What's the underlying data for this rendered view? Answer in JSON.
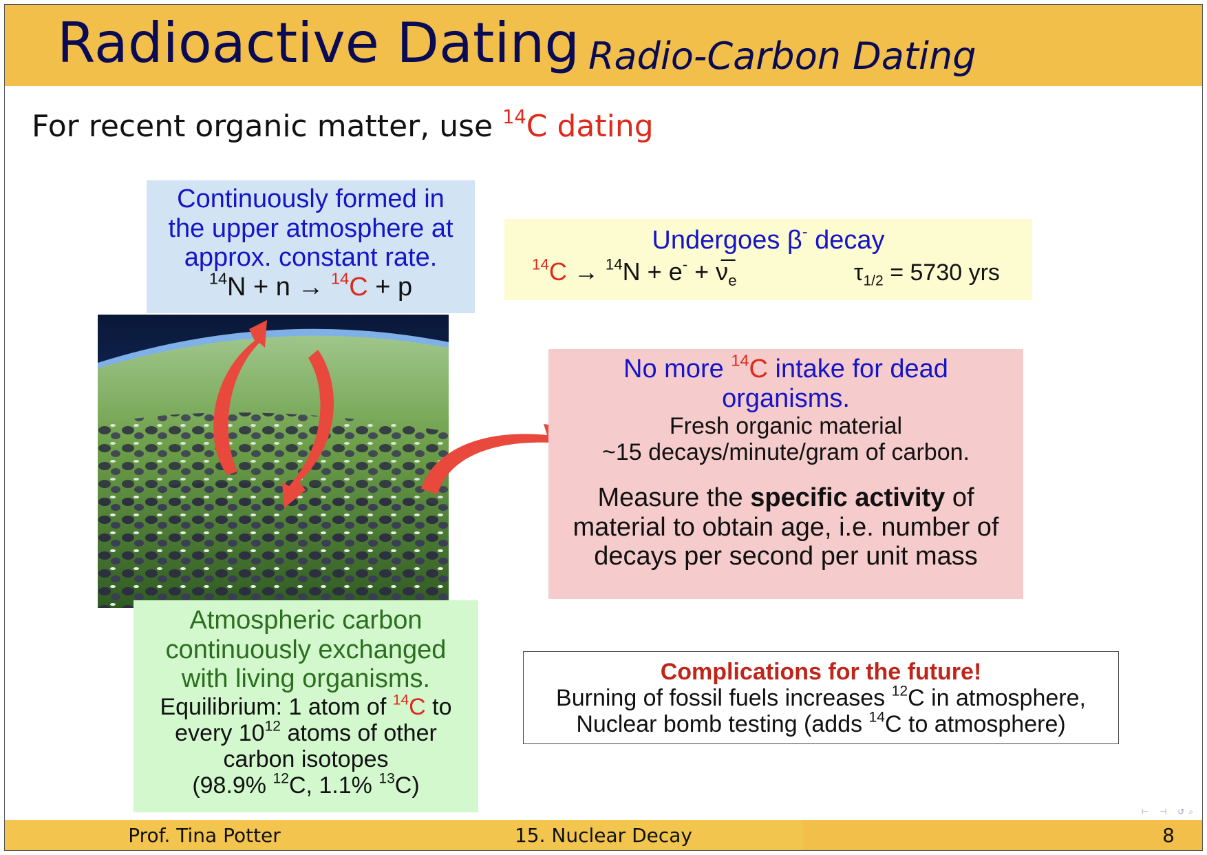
{
  "header": {
    "title": "Radioactive Dating",
    "subtitle": "Radio-Carbon Dating"
  },
  "intro": {
    "text": "For recent organic matter, use ",
    "highlight_sup": "14",
    "highlight_text": "C dating"
  },
  "blue_box": {
    "line1": "Continuously formed in",
    "line2": "the upper atmosphere at",
    "line3": "approx. constant rate.",
    "eq_sup1": "14",
    "eq_part1": "N + n → ",
    "eq_sup2": "14",
    "eq_part2": "C",
    "eq_part3": " + p"
  },
  "yellow_box": {
    "heading": "Undergoes β",
    "heading_sup": "-",
    "heading_end": " decay",
    "eq_sup1": "14",
    "eq_c": "C",
    "eq_arrow": " → ",
    "eq_sup2": "14",
    "eq_n": "N + e",
    "eq_sup3": "-",
    "eq_plus": " + ν̅",
    "eq_sub": "e",
    "tau": "τ",
    "tau_sub": "1/2",
    "tau_value": " = 5730 yrs"
  },
  "pink_box": {
    "head1": "No more ",
    "head_sup": "14",
    "head_c": "C",
    "head2": " intake for dead",
    "head3": "organisms.",
    "line1": "Fresh organic material",
    "line2": "~15 decays/minute/gram of carbon.",
    "measure1": "Measure the ",
    "measure_bold": "specific activity",
    "measure2": " of",
    "measure3": "material to obtain age, i.e. number of",
    "measure4": "decays per second per unit mass"
  },
  "green_box": {
    "line1": "Atmospheric carbon",
    "line2": "continuously exchanged",
    "line3": "with living organisms.",
    "eq1": "Equilibrium: 1 atom of ",
    "eq_sup": "14",
    "eq_c": "C",
    "eq_to": " to",
    "every1": "every 10",
    "every_sup": "12",
    "every2": " atoms of other",
    "isotopes": "carbon isotopes",
    "pct1": "(98.9% ",
    "pct_sup1": "12",
    "pct2": "C, 1.1% ",
    "pct_sup2": "13",
    "pct3": "C)"
  },
  "complications": {
    "title": "Complications for the future!",
    "line1a": "Burning of fossil fuels increases ",
    "line1_sup": "12",
    "line1b": "C in atmosphere,",
    "line2a": "Nuclear bomb testing (adds ",
    "line2_sup": "14",
    "line2b": "C to atmosphere)"
  },
  "footer": {
    "author": "Prof. Tina Potter",
    "section": "15. Nuclear Decay",
    "page": "8"
  },
  "nav_icons": "⊢ ⊣ ↺⌕",
  "colors": {
    "header_bg": "#f2c04a",
    "title": "#0a0a55",
    "red": "#dd2a1b",
    "blue_text": "#1515c8",
    "green_text": "#2c6e1f",
    "complication_red": "#c0251a",
    "blue_box": "#d2e4f3",
    "yellow_box": "#fdfbd0",
    "pink_box": "#f5cbcc",
    "green_box": "#d3f8ce",
    "arrow": "#e8493c"
  }
}
